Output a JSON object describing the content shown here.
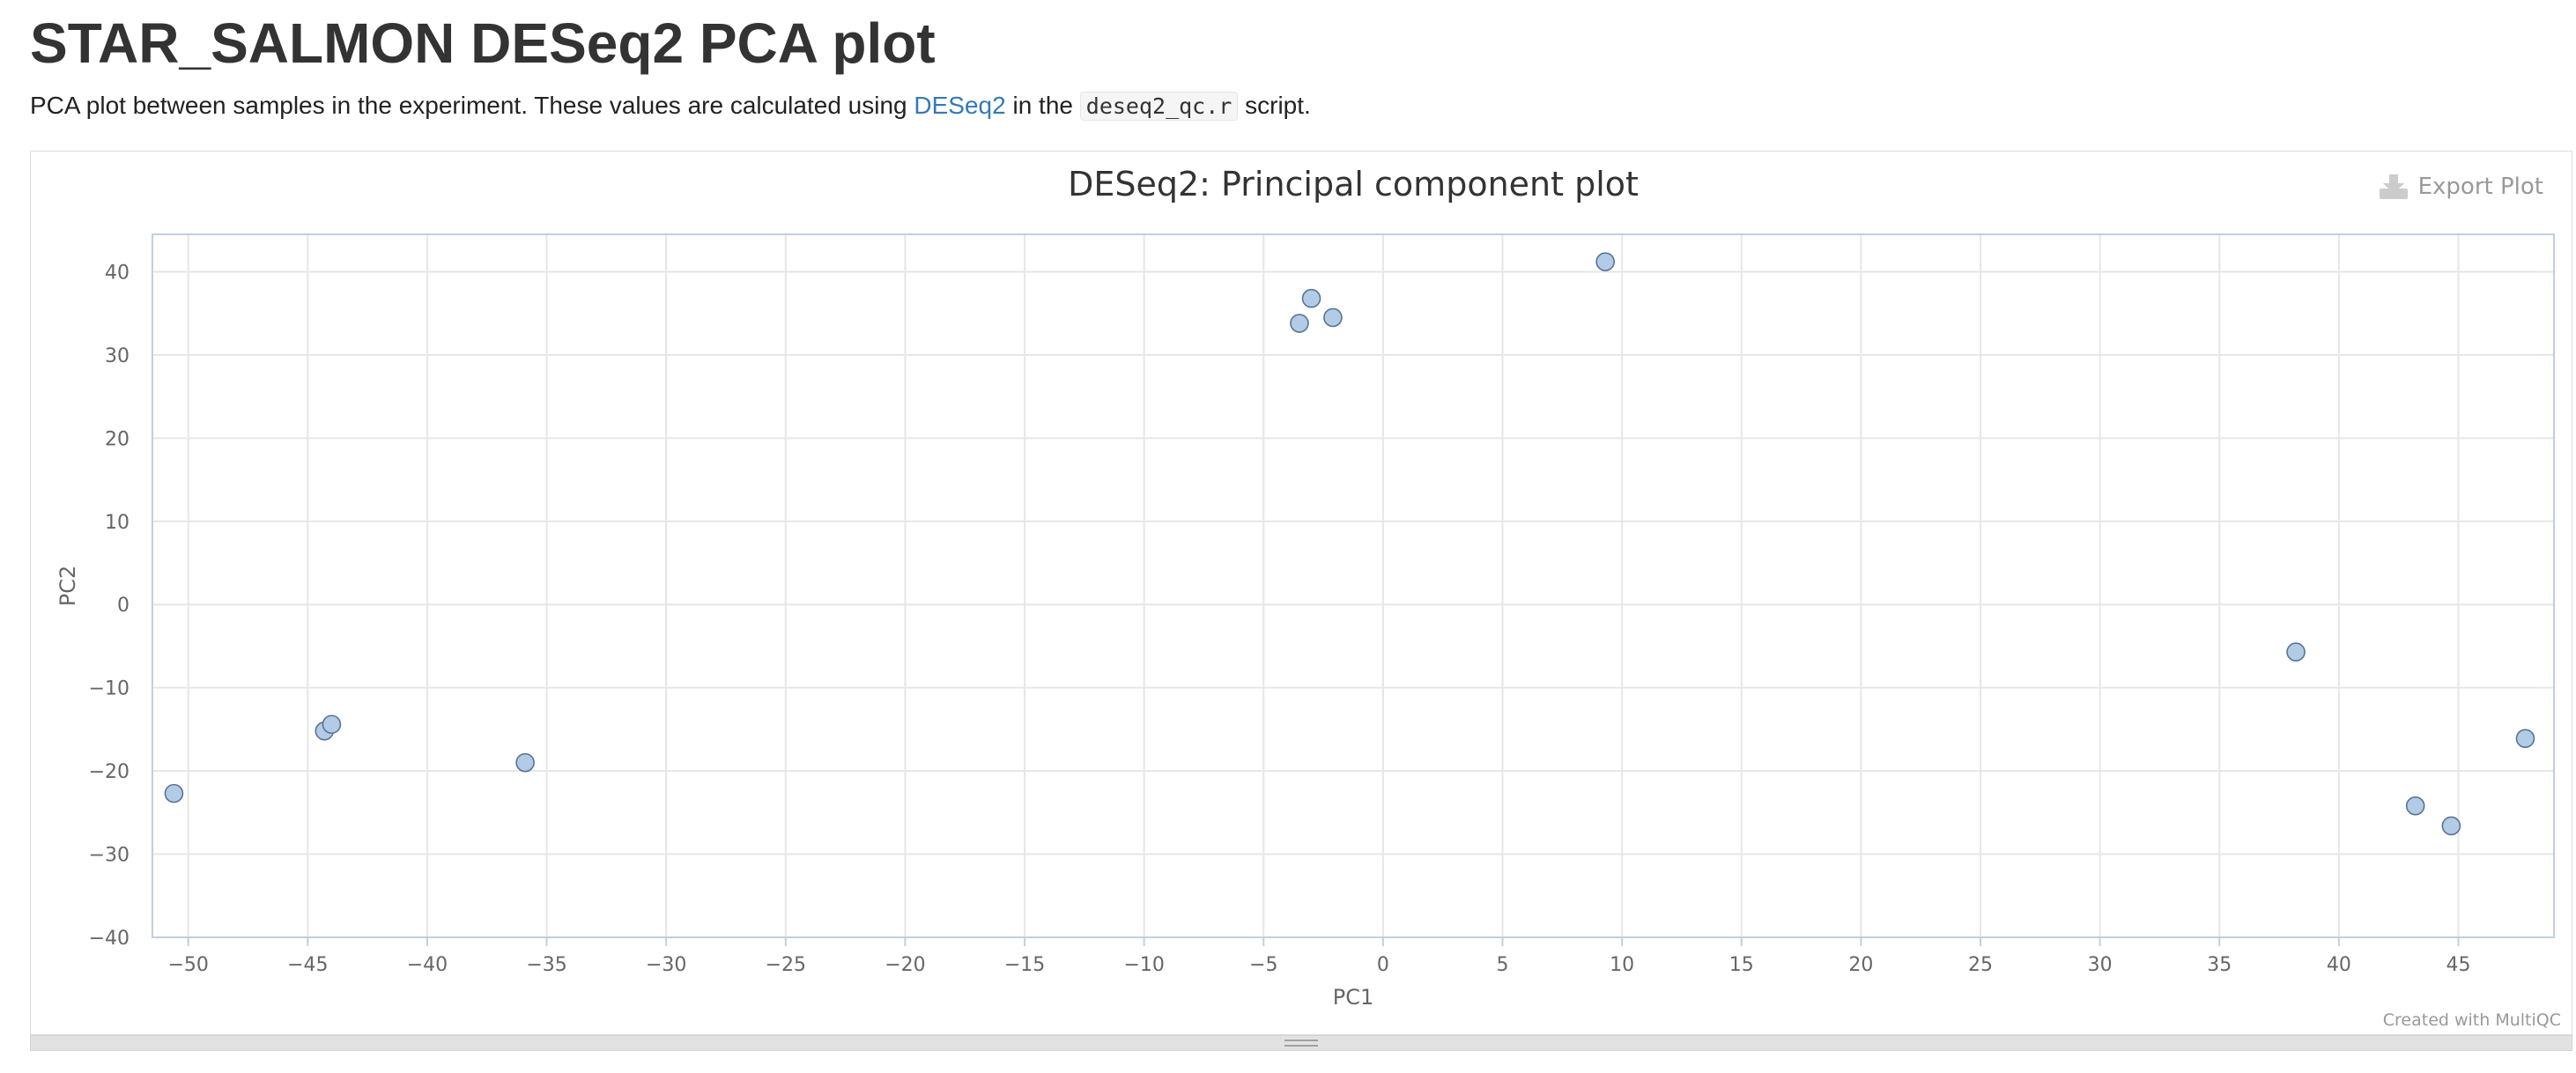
{
  "page": {
    "title": "STAR_SALMON DESeq2 PCA plot",
    "description_prefix": "PCA plot between samples in the experiment. These values are calculated using ",
    "link_text": "DESeq2",
    "description_middle": " in the ",
    "code_text": "deseq2_qc.r",
    "description_suffix": " script."
  },
  "plot": {
    "export_label": "Export Plot",
    "export_icon": "download-icon",
    "credit": "Created with MultiQC",
    "colors": {
      "marker_fill": "#b2cbe6",
      "marker_stroke": "#5a7394",
      "grid": "#e6e6e6",
      "axis": "#c0d0e0",
      "link": "#337ab7"
    }
  },
  "chart_data": {
    "type": "scatter",
    "title": "DESeq2: Principal component plot",
    "xlabel": "PC1",
    "ylabel": "PC2",
    "xlim": [
      -51.5,
      49
    ],
    "ylim": [
      -40,
      44.5
    ],
    "xticks": [
      -50,
      -45,
      -40,
      -35,
      -30,
      -25,
      -20,
      -15,
      -10,
      -5,
      0,
      5,
      10,
      15,
      20,
      25,
      30,
      35,
      40,
      45
    ],
    "yticks": [
      -40,
      -30,
      -20,
      -10,
      0,
      10,
      20,
      30,
      40
    ],
    "grid": true,
    "legend": "none",
    "points": [
      {
        "x": -50.6,
        "y": -22.7
      },
      {
        "x": -44.3,
        "y": -15.2
      },
      {
        "x": -44.0,
        "y": -14.4
      },
      {
        "x": -35.9,
        "y": -19.0
      },
      {
        "x": -3.5,
        "y": 33.8
      },
      {
        "x": -3.0,
        "y": 36.8
      },
      {
        "x": -2.1,
        "y": 34.5
      },
      {
        "x": 9.3,
        "y": 41.2
      },
      {
        "x": 38.2,
        "y": -5.7
      },
      {
        "x": 43.2,
        "y": -24.2
      },
      {
        "x": 44.7,
        "y": -26.6
      },
      {
        "x": 47.8,
        "y": -16.1
      }
    ]
  }
}
